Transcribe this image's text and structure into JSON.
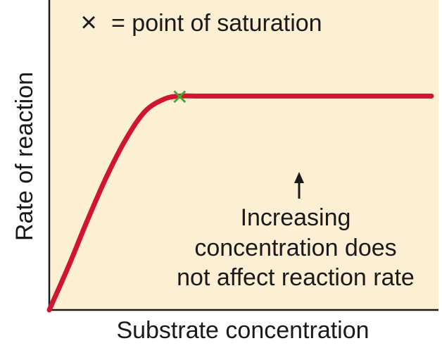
{
  "chart_data": {
    "type": "line",
    "title": "",
    "xlabel": "Substrate concentration",
    "ylabel": "Rate of reaction",
    "legend": {
      "symbol": "×",
      "text": "= point of saturation"
    },
    "annotation": {
      "lines": [
        "Increasing",
        "concentration does",
        "not affect reaction rate"
      ]
    },
    "series": [
      {
        "x": [
          0,
          0.05,
          0.1,
          0.15,
          0.2,
          0.25,
          0.3,
          0.3413,
          0.4,
          0.5,
          0.6,
          0.7,
          0.8,
          0.9,
          1.0
        ],
        "y": [
          0,
          0.14,
          0.29,
          0.43,
          0.55,
          0.64,
          0.68,
          0.69,
          0.69,
          0.69,
          0.69,
          0.69,
          0.69,
          0.69,
          0.69
        ]
      }
    ],
    "saturation_point": {
      "x": 0.3413,
      "y": 0.69
    },
    "xlim": [
      0,
      1
    ],
    "ylim": [
      0,
      1
    ],
    "grid": false,
    "colors": {
      "background": "#fcefd3",
      "curve": "#d0152e",
      "marker": "#4aa631",
      "axis": "#1a1a1a"
    }
  }
}
